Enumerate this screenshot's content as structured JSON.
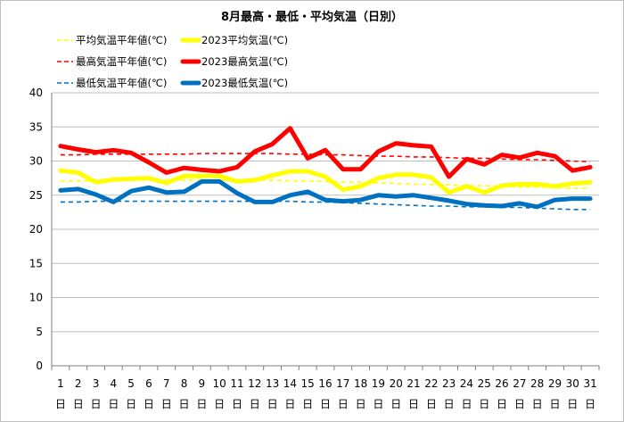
{
  "chart_data": {
    "type": "line",
    "title": "8月最高・最低・平均気温（日別）",
    "xlabel": "",
    "ylabel": "",
    "ylim": [
      0,
      40
    ],
    "yticks": [
      0,
      5,
      10,
      15,
      20,
      25,
      30,
      35,
      40
    ],
    "grid": "horizontal-major",
    "legend_placement": "top-left",
    "categories": [
      "1",
      "2",
      "3",
      "4",
      "5",
      "6",
      "7",
      "8",
      "9",
      "10",
      "11",
      "12",
      "13",
      "14",
      "15",
      "16",
      "17",
      "18",
      "19",
      "20",
      "21",
      "22",
      "23",
      "24",
      "25",
      "26",
      "27",
      "28",
      "29",
      "30",
      "31"
    ],
    "category_suffix": "日",
    "series": [
      {
        "name": "平均気温平年値(℃)",
        "color": "#ffff00",
        "style": "dashed",
        "values": [
          27.1,
          27.1,
          27.1,
          27.2,
          27.2,
          27.2,
          27.2,
          27.2,
          27.2,
          27.2,
          27.2,
          27.2,
          27.2,
          27.1,
          27.1,
          27.0,
          26.9,
          26.9,
          26.8,
          26.7,
          26.6,
          26.6,
          26.5,
          26.4,
          26.4,
          26.3,
          26.2,
          26.2,
          26.1,
          26.0,
          26.0
        ]
      },
      {
        "name": "2023平均気温(℃)",
        "color": "#ffff00",
        "style": "solid",
        "values": [
          28.6,
          28.3,
          26.9,
          27.3,
          27.4,
          27.5,
          26.8,
          27.8,
          27.8,
          27.8,
          27.0,
          27.2,
          27.9,
          28.5,
          28.5,
          27.7,
          25.8,
          26.3,
          27.5,
          28.0,
          28.0,
          27.6,
          25.4,
          26.3,
          25.4,
          26.4,
          26.6,
          26.6,
          26.3,
          26.7,
          26.9
        ]
      },
      {
        "name": "最高気温平年値(℃)",
        "color": "#ff0000",
        "style": "dashed",
        "values": [
          30.9,
          30.9,
          31.0,
          31.0,
          31.0,
          31.0,
          31.0,
          31.0,
          31.1,
          31.1,
          31.1,
          31.1,
          31.1,
          31.0,
          31.0,
          30.9,
          30.9,
          30.8,
          30.7,
          30.7,
          30.6,
          30.6,
          30.5,
          30.4,
          30.4,
          30.3,
          30.2,
          30.2,
          30.1,
          30.0,
          29.9
        ]
      },
      {
        "name": "2023最高気温(℃)",
        "color": "#ff0000",
        "style": "solid",
        "values": [
          32.2,
          31.7,
          31.3,
          31.6,
          31.2,
          29.8,
          28.3,
          29.0,
          28.7,
          28.5,
          29.1,
          31.4,
          32.5,
          34.8,
          30.4,
          31.6,
          28.8,
          28.8,
          31.4,
          32.6,
          32.3,
          32.1,
          27.7,
          30.3,
          29.5,
          30.9,
          30.5,
          31.2,
          30.7,
          28.6,
          29.1
        ]
      },
      {
        "name": "最低気温平年値(℃)",
        "color": "#0070c0",
        "style": "dashed",
        "values": [
          24.0,
          24.0,
          24.1,
          24.1,
          24.1,
          24.1,
          24.1,
          24.1,
          24.1,
          24.1,
          24.1,
          24.1,
          24.1,
          24.1,
          24.0,
          24.0,
          23.9,
          23.8,
          23.7,
          23.6,
          23.5,
          23.4,
          23.4,
          23.3,
          23.3,
          23.2,
          23.2,
          23.1,
          23.0,
          22.9,
          22.9
        ]
      },
      {
        "name": "2023最低気温(℃)",
        "color": "#0070c0",
        "style": "solid",
        "values": [
          25.7,
          25.9,
          25.1,
          24.0,
          25.6,
          26.1,
          25.4,
          25.5,
          27.0,
          27.0,
          25.3,
          24.0,
          24.0,
          25.0,
          25.5,
          24.3,
          24.1,
          24.3,
          25.0,
          24.8,
          25.0,
          24.6,
          24.2,
          23.7,
          23.5,
          23.4,
          23.8,
          23.3,
          24.3,
          24.5,
          24.5
        ]
      }
    ]
  }
}
